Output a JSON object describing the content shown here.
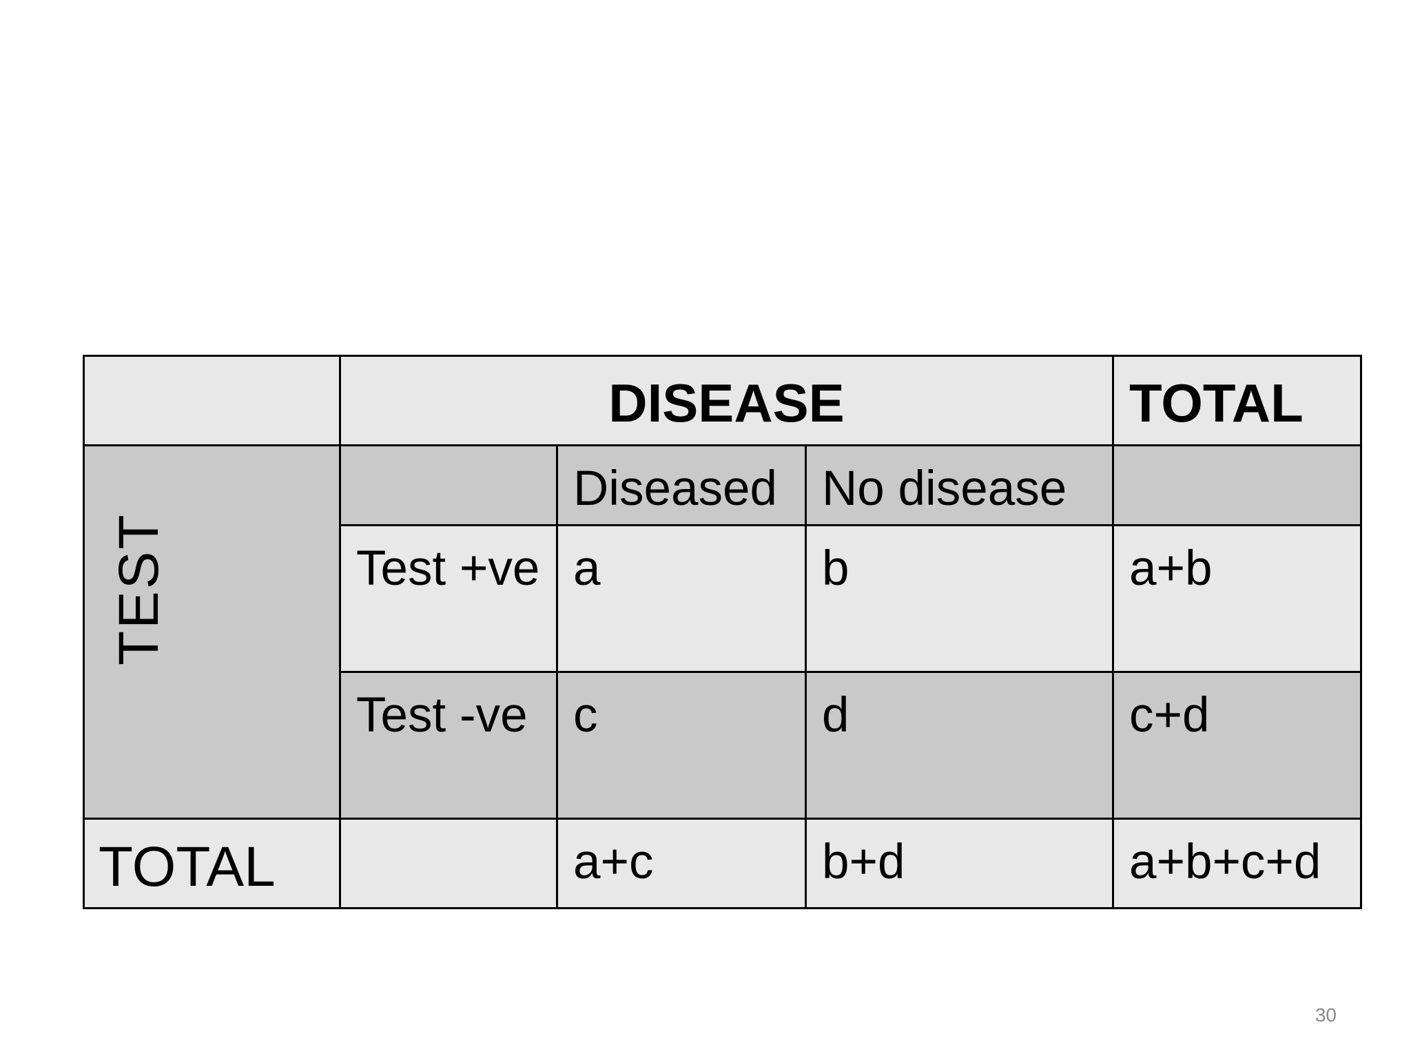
{
  "table": {
    "header": {
      "disease": "DISEASE",
      "total": "TOTAL"
    },
    "side_label": "TEST",
    "sub_header": {
      "diseased": "Diseased",
      "no_disease": "No disease"
    },
    "rows": [
      {
        "label": "Test +ve",
        "diseased": "a",
        "no_disease": "b",
        "total": "a+b"
      },
      {
        "label": "Test -ve",
        "diseased": "c",
        "no_disease": "d",
        "total": "c+d"
      }
    ],
    "total_row": {
      "label": "TOTAL",
      "diseased": "a+c",
      "no_disease": "b+d",
      "total": "a+b+c+d"
    }
  },
  "page_number": "30",
  "colors": {
    "light_cell": "#e8e8e8",
    "dark_cell": "#c9c9c9",
    "border": "#000000",
    "page_number": "#8a8a8a"
  }
}
